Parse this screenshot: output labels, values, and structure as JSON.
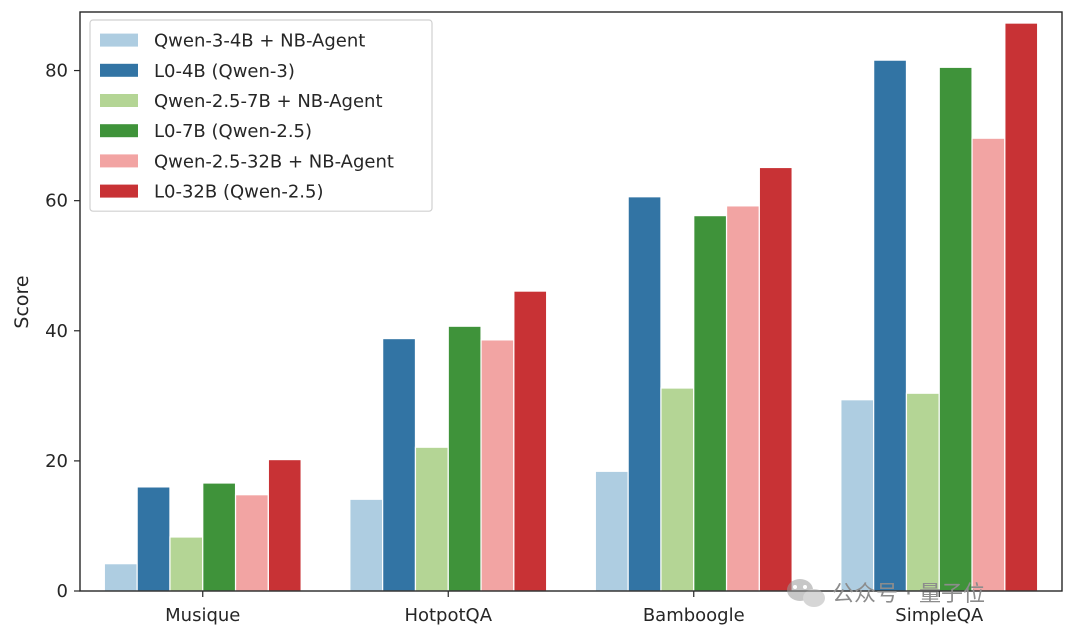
{
  "chart_data": {
    "type": "bar",
    "categories": [
      "Musique",
      "HotpotQA",
      "Bamboogle",
      "SimpleQA"
    ],
    "ylabel": "Score",
    "xlabel": "",
    "ylim": [
      0,
      89
    ],
    "yticks": [
      0,
      20,
      40,
      60,
      80
    ],
    "grid": false,
    "legend_position": "top-left",
    "series": [
      {
        "name": "Qwen-3-4B + NB-Agent",
        "color": "#aecde1",
        "values": [
          4.2,
          14.1,
          18.4,
          29.4
        ]
      },
      {
        "name": "L0-4B (Qwen-3)",
        "color": "#3274a4",
        "values": [
          16.0,
          38.8,
          60.6,
          81.6
        ]
      },
      {
        "name": "Qwen-2.5-7B + NB-Agent",
        "color": "#b4d595",
        "values": [
          8.3,
          22.1,
          31.2,
          30.4
        ]
      },
      {
        "name": "L0-7B (Qwen-2.5)",
        "color": "#3f933a",
        "values": [
          16.6,
          40.7,
          57.7,
          80.5
        ]
      },
      {
        "name": "Qwen-2.5-32B + NB-Agent",
        "color": "#f2a4a3",
        "values": [
          14.8,
          38.6,
          59.2,
          69.6
        ]
      },
      {
        "name": "L0-32B (Qwen-2.5)",
        "color": "#c83235",
        "values": [
          20.2,
          46.1,
          65.1,
          87.3
        ]
      }
    ]
  },
  "watermark": {
    "text": "公众号 · 量子位",
    "icon": "wechat-icon"
  }
}
